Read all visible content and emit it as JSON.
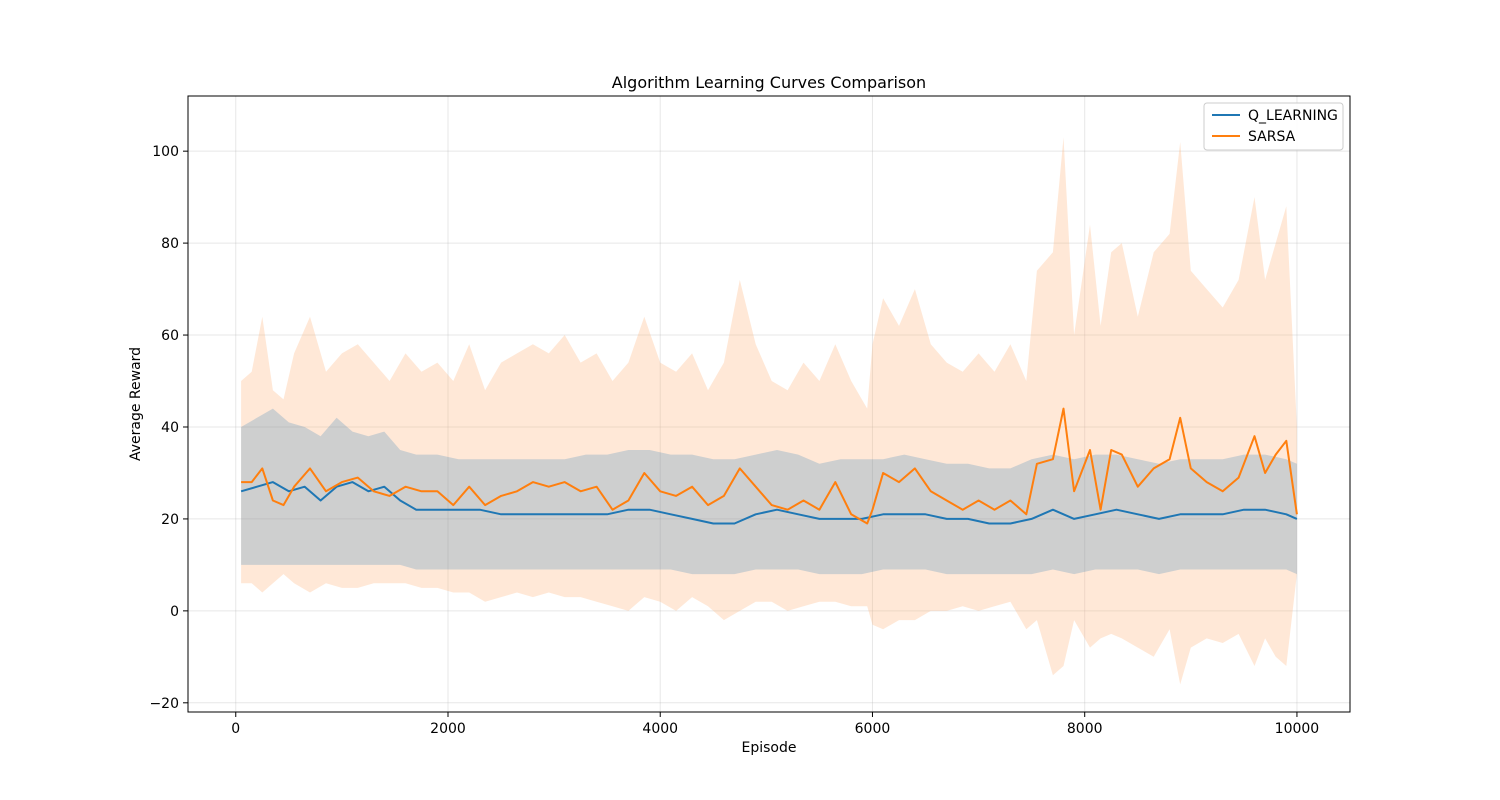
{
  "chart_data": {
    "type": "line",
    "title": "Algorithm Learning Curves Comparison",
    "xlabel": "Episode",
    "ylabel": "Average Reward",
    "xlim": [
      -450,
      10500
    ],
    "ylim": [
      -22,
      112
    ],
    "xticks": [
      0,
      2000,
      4000,
      6000,
      8000,
      10000
    ],
    "xtick_labels": [
      "0",
      "2000",
      "4000",
      "6000",
      "8000",
      "10000"
    ],
    "yticks": [
      -20,
      0,
      20,
      40,
      60,
      80,
      100
    ],
    "ytick_labels": [
      "−20",
      "0",
      "20",
      "40",
      "60",
      "80",
      "100"
    ],
    "grid": true,
    "legend": "top-right",
    "series": [
      {
        "name": "Q_LEARNING",
        "color": "#1f77b4",
        "band_color": "#1f77b4",
        "x": [
          50,
          200,
          350,
          500,
          650,
          800,
          950,
          1100,
          1250,
          1400,
          1550,
          1700,
          1900,
          2100,
          2300,
          2500,
          2700,
          2900,
          3100,
          3300,
          3500,
          3700,
          3900,
          4100,
          4300,
          4500,
          4700,
          4900,
          5100,
          5300,
          5500,
          5700,
          5900,
          6100,
          6300,
          6500,
          6700,
          6900,
          7100,
          7300,
          7500,
          7700,
          7900,
          8100,
          8300,
          8500,
          8700,
          8900,
          9100,
          9300,
          9500,
          9700,
          9900,
          10000
        ],
        "y": [
          26,
          27,
          28,
          26,
          27,
          24,
          27,
          28,
          26,
          27,
          24,
          22,
          22,
          22,
          22,
          21,
          21,
          21,
          21,
          21,
          21,
          22,
          22,
          21,
          20,
          19,
          19,
          21,
          22,
          21,
          20,
          20,
          20,
          21,
          21,
          21,
          20,
          20,
          19,
          19,
          20,
          22,
          20,
          21,
          22,
          21,
          20,
          21,
          21,
          21,
          22,
          22,
          21,
          20
        ],
        "upper": [
          40,
          42,
          44,
          41,
          40,
          38,
          42,
          39,
          38,
          39,
          35,
          34,
          34,
          33,
          33,
          33,
          33,
          33,
          33,
          34,
          34,
          35,
          35,
          34,
          34,
          33,
          33,
          34,
          35,
          34,
          32,
          33,
          33,
          33,
          34,
          33,
          32,
          32,
          31,
          31,
          33,
          34,
          33,
          34,
          34,
          33,
          32,
          33,
          33,
          33,
          34,
          34,
          33,
          32
        ],
        "lower": [
          10,
          10,
          10,
          10,
          10,
          10,
          10,
          10,
          10,
          10,
          10,
          9,
          9,
          9,
          9,
          9,
          9,
          9,
          9,
          9,
          9,
          9,
          9,
          9,
          8,
          8,
          8,
          9,
          9,
          9,
          8,
          8,
          8,
          9,
          9,
          9,
          8,
          8,
          8,
          8,
          8,
          9,
          8,
          9,
          9,
          9,
          8,
          9,
          9,
          9,
          9,
          9,
          9,
          8
        ]
      },
      {
        "name": "SARSA",
        "color": "#ff7f0e",
        "band_color": "#ffb27a",
        "x": [
          50,
          150,
          250,
          350,
          450,
          550,
          700,
          850,
          1000,
          1150,
          1300,
          1450,
          1600,
          1750,
          1900,
          2050,
          2200,
          2350,
          2500,
          2650,
          2800,
          2950,
          3100,
          3250,
          3400,
          3550,
          3700,
          3850,
          4000,
          4150,
          4300,
          4450,
          4600,
          4750,
          4900,
          5050,
          5200,
          5350,
          5500,
          5650,
          5800,
          5950,
          6000,
          6100,
          6250,
          6400,
          6550,
          6700,
          6850,
          7000,
          7150,
          7300,
          7450,
          7550,
          7700,
          7800,
          7900,
          8050,
          8150,
          8250,
          8350,
          8500,
          8650,
          8800,
          8900,
          9000,
          9150,
          9300,
          9450,
          9600,
          9700,
          9800,
          9900,
          10000
        ],
        "y": [
          28,
          28,
          31,
          24,
          23,
          27,
          31,
          26,
          28,
          29,
          26,
          25,
          27,
          26,
          26,
          23,
          27,
          23,
          25,
          26,
          28,
          27,
          28,
          26,
          27,
          22,
          24,
          30,
          26,
          25,
          27,
          23,
          25,
          31,
          27,
          23,
          22,
          24,
          22,
          28,
          21,
          19,
          22,
          30,
          28,
          31,
          26,
          24,
          22,
          24,
          22,
          24,
          21,
          32,
          33,
          44,
          26,
          35,
          22,
          35,
          34,
          27,
          31,
          33,
          42,
          31,
          28,
          26,
          29,
          38,
          30,
          34,
          37,
          21
        ],
        "upper": [
          50,
          52,
          64,
          48,
          46,
          56,
          64,
          52,
          56,
          58,
          54,
          50,
          56,
          52,
          54,
          50,
          58,
          48,
          54,
          56,
          58,
          56,
          60,
          54,
          56,
          50,
          54,
          64,
          54,
          52,
          56,
          48,
          54,
          72,
          58,
          50,
          48,
          54,
          50,
          58,
          50,
          44,
          58,
          68,
          62,
          70,
          58,
          54,
          52,
          56,
          52,
          58,
          50,
          74,
          78,
          103,
          60,
          84,
          62,
          78,
          80,
          64,
          78,
          82,
          102,
          74,
          70,
          66,
          72,
          90,
          72,
          80,
          88,
          40
        ],
        "lower": [
          6,
          6,
          4,
          6,
          8,
          6,
          4,
          6,
          5,
          5,
          6,
          6,
          6,
          5,
          5,
          4,
          4,
          2,
          3,
          4,
          3,
          4,
          3,
          3,
          2,
          1,
          0,
          3,
          2,
          0,
          3,
          1,
          -2,
          0,
          2,
          2,
          0,
          1,
          2,
          2,
          1,
          1,
          -3,
          -4,
          -2,
          -2,
          0,
          0,
          1,
          0,
          1,
          2,
          -4,
          -2,
          -14,
          -12,
          -2,
          -8,
          -6,
          -5,
          -6,
          -8,
          -10,
          -4,
          -16,
          -8,
          -6,
          -7,
          -5,
          -12,
          -6,
          -10,
          -12,
          8
        ]
      }
    ]
  }
}
